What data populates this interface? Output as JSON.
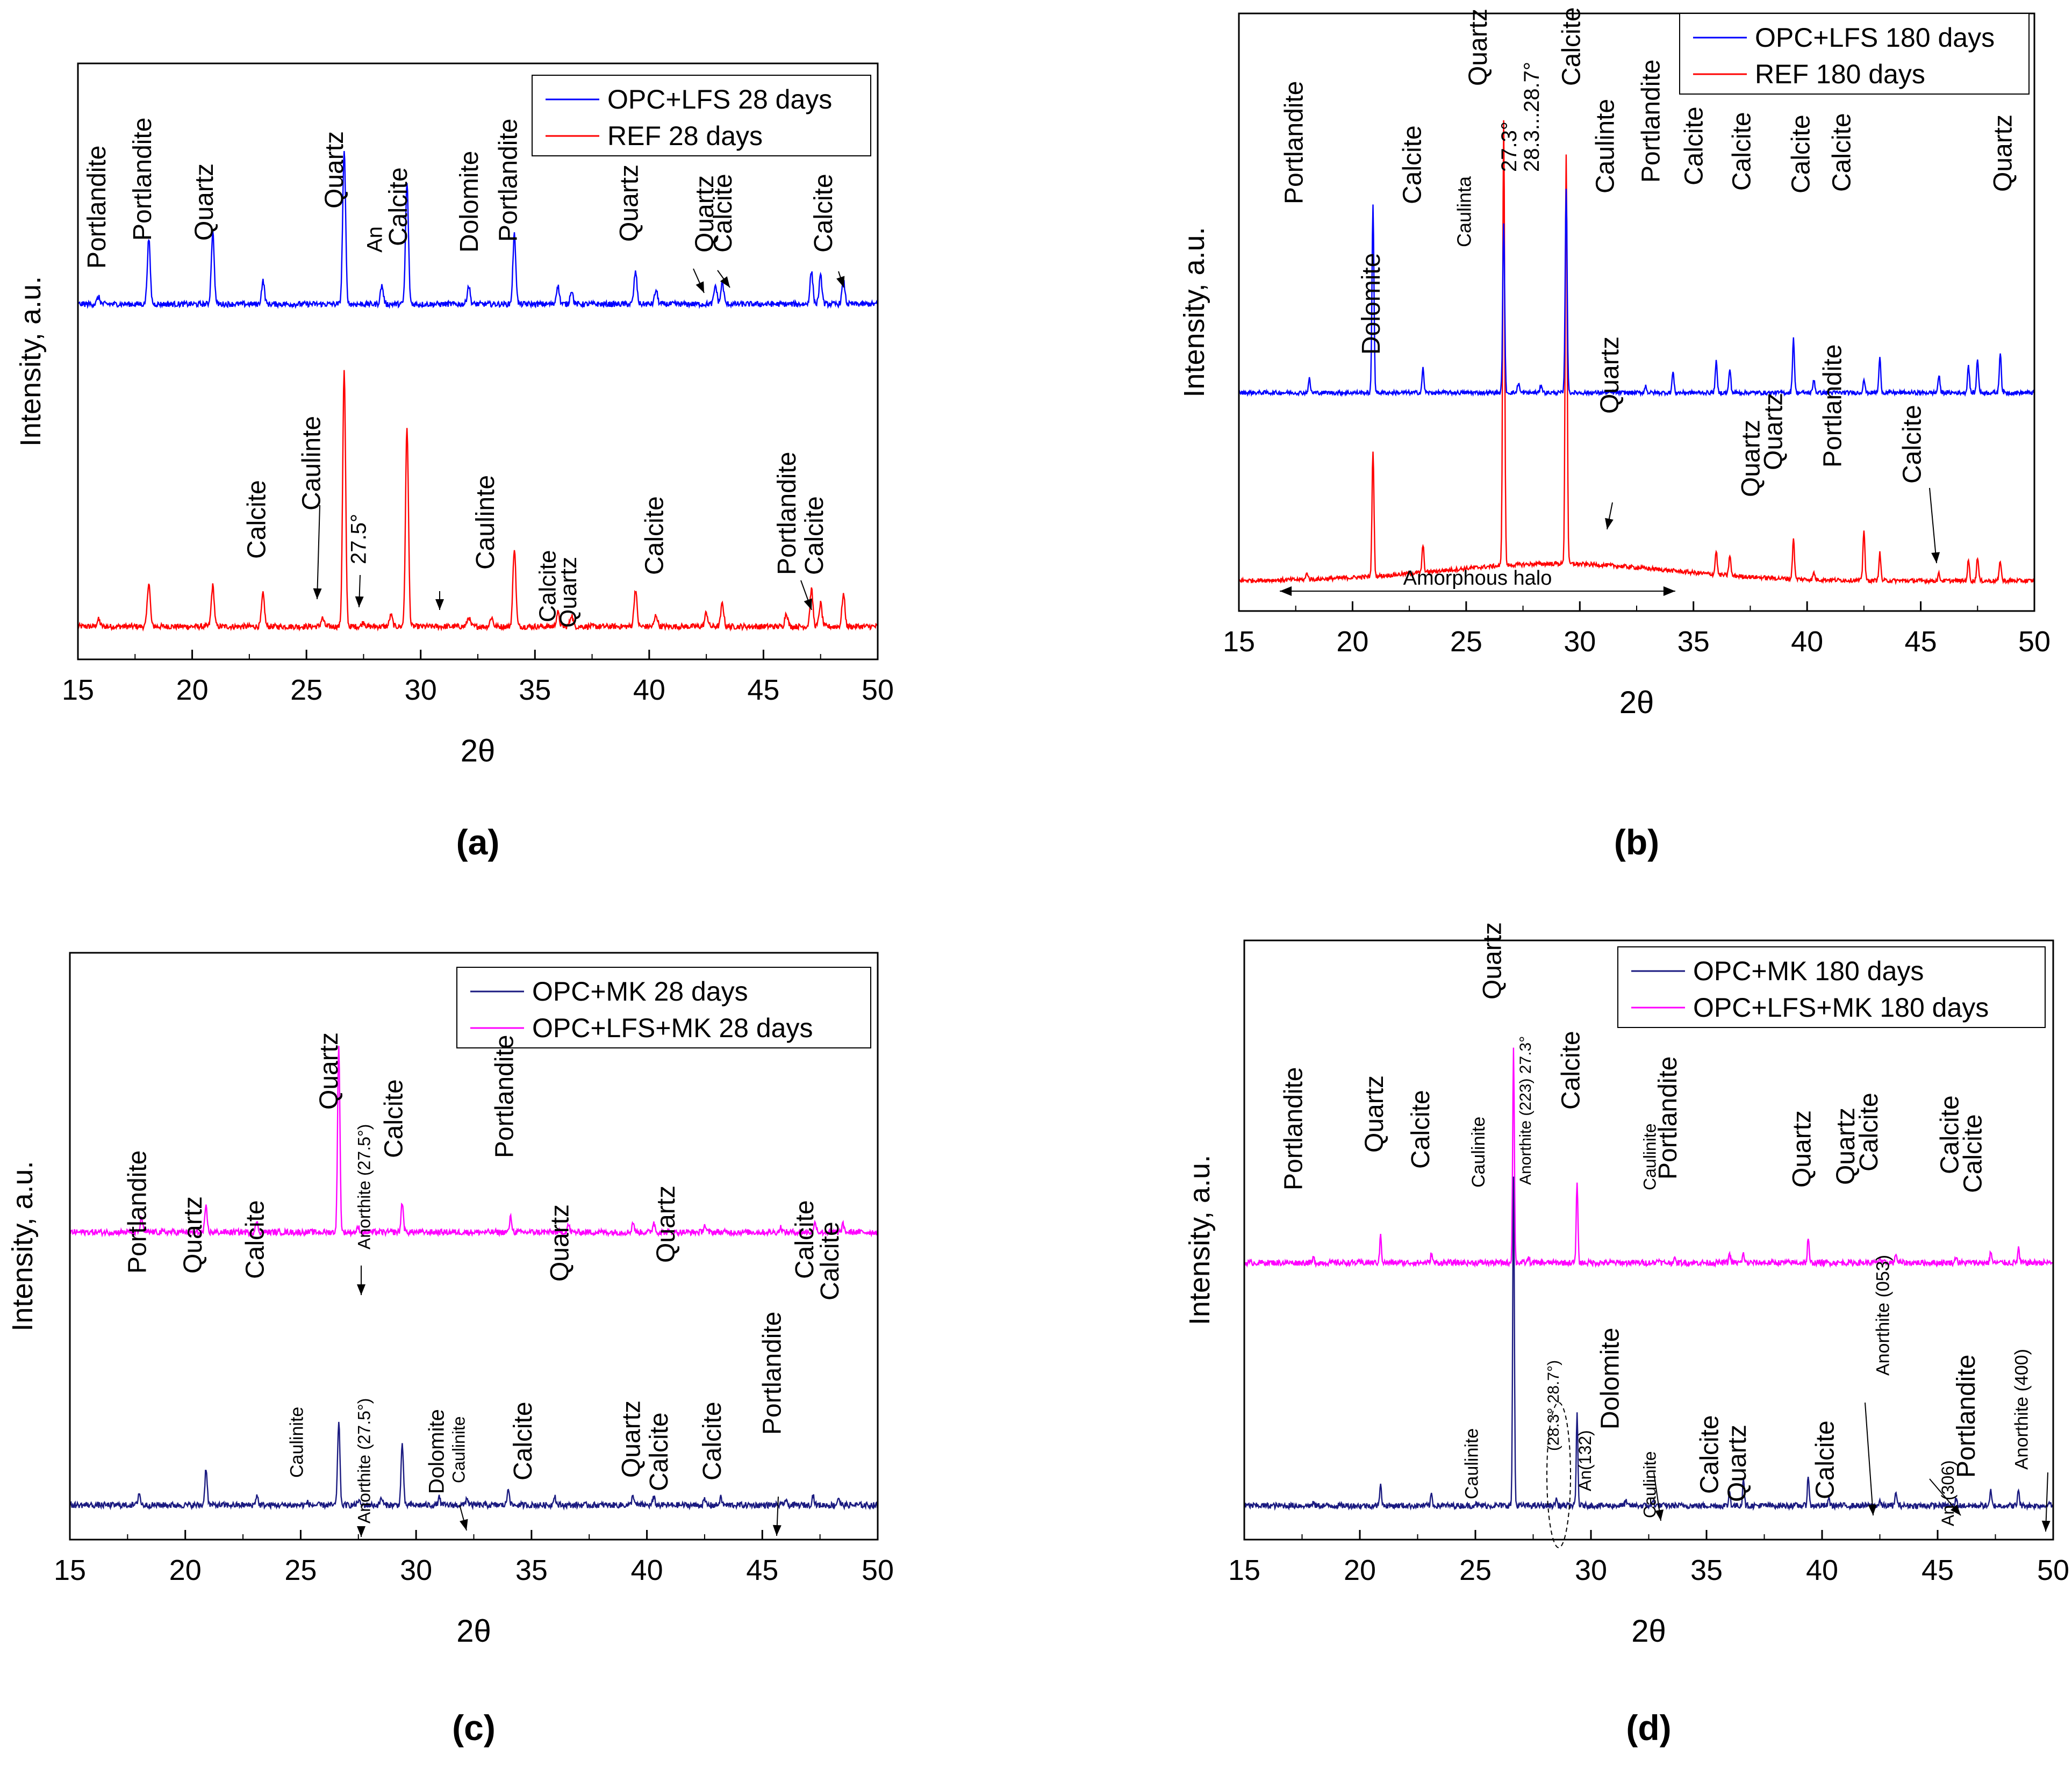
{
  "chart_data": [
    {
      "panel_label": "(a)",
      "type": "line",
      "xlabel": "2θ",
      "ylabel": "Intensity, a.u.",
      "xlim": [
        15,
        50
      ],
      "xticks": [
        15,
        20,
        25,
        30,
        35,
        40,
        45,
        50
      ],
      "legend": "top-right",
      "series": [
        {
          "name": "REF 28 days",
          "color": "#ff0000",
          "baseline": 0.05,
          "offset": 0,
          "peaks": [
            [
              15.9,
              0.015
            ],
            [
              18.1,
              0.095
            ],
            [
              20.9,
              0.088
            ],
            [
              23.1,
              0.07
            ],
            [
              25.7,
              0.018
            ],
            [
              26.65,
              0.55
            ],
            [
              27.5,
              0.01
            ],
            [
              28.7,
              0.025
            ],
            [
              29.4,
              0.43
            ],
            [
              32.1,
              0.02
            ],
            [
              33.1,
              0.02
            ],
            [
              34.1,
              0.17
            ],
            [
              36.0,
              0.03
            ],
            [
              36.6,
              0.025
            ],
            [
              39.4,
              0.08
            ],
            [
              40.3,
              0.025
            ],
            [
              42.5,
              0.03
            ],
            [
              43.2,
              0.05
            ],
            [
              46.0,
              0.03
            ],
            [
              47.1,
              0.08
            ],
            [
              47.5,
              0.05
            ],
            [
              48.5,
              0.07
            ]
          ]
        },
        {
          "name": "OPC+LFS 28 days",
          "color": "#0000ff",
          "baseline": 0.05,
          "offset": 0.695,
          "peaks": [
            [
              15.9,
              0.015
            ],
            [
              18.1,
              0.14
            ],
            [
              20.9,
              0.155
            ],
            [
              23.1,
              0.05
            ],
            [
              26.65,
              0.33
            ],
            [
              28.3,
              0.04
            ],
            [
              29.4,
              0.26
            ],
            [
              32.1,
              0.04
            ],
            [
              34.1,
              0.15
            ],
            [
              36.0,
              0.04
            ],
            [
              36.6,
              0.03
            ],
            [
              39.4,
              0.07
            ],
            [
              40.3,
              0.03
            ],
            [
              42.9,
              0.04
            ],
            [
              43.2,
              0.045
            ],
            [
              47.1,
              0.07
            ],
            [
              47.5,
              0.06
            ],
            [
              48.5,
              0.05
            ]
          ]
        }
      ],
      "annotations": [
        {
          "text": "Portlandite",
          "series": "OPC+LFS 28 days"
        },
        {
          "text": "Portlandite",
          "series": "OPC+LFS 28 days"
        },
        {
          "text": "Quartz",
          "series": "OPC+LFS 28 days"
        },
        {
          "text": "Quartz",
          "series": "OPC+LFS 28 days"
        },
        {
          "text": "An",
          "series": "OPC+LFS 28 days"
        },
        {
          "text": "Calcite",
          "series": "OPC+LFS 28 days"
        },
        {
          "text": "Dolomite",
          "series": "OPC+LFS 28 days"
        },
        {
          "text": "Portlandite",
          "series": "OPC+LFS 28 days"
        },
        {
          "text": "Quartz",
          "series": "OPC+LFS 28 days"
        },
        {
          "text": "Quartz",
          "series": "OPC+LFS 28 days"
        },
        {
          "text": "Calcite",
          "series": "OPC+LFS 28 days"
        },
        {
          "text": "Calcite",
          "series": "OPC+LFS 28 days"
        },
        {
          "text": "Calcite",
          "series": "REF 28 days"
        },
        {
          "text": "Caulinte",
          "series": "REF 28 days"
        },
        {
          "text": "27.5°",
          "series": "REF 28 days"
        },
        {
          "text": "Caulinte",
          "series": "REF 28 days"
        },
        {
          "text": "Calcite",
          "series": "REF 28 days"
        },
        {
          "text": "Quartz",
          "series": "REF 28 days"
        },
        {
          "text": "Calcite",
          "series": "REF 28 days"
        },
        {
          "text": "Portlandite",
          "series": "REF 28 days"
        },
        {
          "text": "Calcite",
          "series": "REF 28 days"
        }
      ]
    },
    {
      "panel_label": "(b)",
      "type": "line",
      "xlabel": "2θ",
      "ylabel": "Intensity, a.u.",
      "xlim": [
        15,
        50
      ],
      "xticks": [
        15,
        20,
        25,
        30,
        35,
        40,
        45,
        50
      ],
      "legend": "top-right",
      "series": [
        {
          "name": "REF 180 days",
          "color": "#ff0000",
          "baseline": 0.06,
          "offset": 0,
          "halo": true,
          "peaks": [
            [
              18.0,
              0.02
            ],
            [
              20.9,
              0.37
            ],
            [
              23.1,
              0.08
            ],
            [
              26.65,
              1.3
            ],
            [
              29.4,
              1.2
            ],
            [
              36.0,
              0.07
            ],
            [
              36.6,
              0.06
            ],
            [
              39.4,
              0.12
            ],
            [
              40.3,
              0.02
            ],
            [
              42.5,
              0.15
            ],
            [
              43.2,
              0.08
            ],
            [
              45.8,
              0.02
            ],
            [
              47.1,
              0.06
            ],
            [
              47.5,
              0.07
            ],
            [
              48.5,
              0.06
            ]
          ]
        },
        {
          "name": "OPC+LFS 180 days",
          "color": "#0000ff",
          "baseline": 0.06,
          "offset": 0.55,
          "peaks": [
            [
              18.1,
              0.04
            ],
            [
              20.9,
              0.55
            ],
            [
              23.1,
              0.07
            ],
            [
              26.65,
              0.5
            ],
            [
              27.3,
              0.03
            ],
            [
              28.3,
              0.025
            ],
            [
              29.4,
              0.6
            ],
            [
              32.9,
              0.02
            ],
            [
              34.1,
              0.06
            ],
            [
              36.0,
              0.09
            ],
            [
              36.6,
              0.07
            ],
            [
              39.4,
              0.16
            ],
            [
              40.3,
              0.04
            ],
            [
              42.5,
              0.04
            ],
            [
              43.2,
              0.1
            ],
            [
              45.8,
              0.05
            ],
            [
              47.1,
              0.08
            ],
            [
              47.5,
              0.1
            ],
            [
              48.5,
              0.12
            ]
          ]
        }
      ],
      "halo_label": "Amorphous halo",
      "annotations": [
        {
          "text": "Portlandite"
        },
        {
          "text": "Calcite"
        },
        {
          "text": "Caulinta"
        },
        {
          "text": "Quartz"
        },
        {
          "text": "27.3°"
        },
        {
          "text": "28.3...28.7°"
        },
        {
          "text": "Calcite"
        },
        {
          "text": "Caulinte"
        },
        {
          "text": "Portlandite"
        },
        {
          "text": "Calcite"
        },
        {
          "text": "Calcite"
        },
        {
          "text": "Calcite"
        },
        {
          "text": "Calcite"
        },
        {
          "text": "Quartz"
        },
        {
          "text": "Dolomite"
        },
        {
          "text": "Quartz"
        },
        {
          "text": "Quartz"
        },
        {
          "text": "Quartz"
        },
        {
          "text": "Portlandite"
        },
        {
          "text": "Calcite"
        }
      ]
    },
    {
      "panel_label": "(c)",
      "type": "line",
      "xlabel": "2θ",
      "ylabel": "Intensity, a.u.",
      "xlim": [
        15,
        50
      ],
      "xticks": [
        15,
        20,
        25,
        30,
        35,
        40,
        45,
        50
      ],
      "legend": "top-right",
      "series": [
        {
          "name": "OPC+LFS+MK 28 days",
          "color": "#ff00ff",
          "baseline": 0.05,
          "offset": 0.55,
          "peaks": [
            [
              18.1,
              0.03
            ],
            [
              20.9,
              0.05
            ],
            [
              23.1,
              0.02
            ],
            [
              26.65,
              0.38
            ],
            [
              27.5,
              0.01
            ],
            [
              29.4,
              0.06
            ],
            [
              34.1,
              0.03
            ],
            [
              36.6,
              0.015
            ],
            [
              39.4,
              0.02
            ],
            [
              40.3,
              0.02
            ],
            [
              42.5,
              0.015
            ],
            [
              45.8,
              0.01
            ],
            [
              47.3,
              0.02
            ],
            [
              48.5,
              0.015
            ]
          ]
        },
        {
          "name": "OPC+MK 28 days",
          "color": "#1a1a80",
          "baseline": 0.05,
          "offset": 0,
          "peaks": [
            [
              18.0,
              0.025
            ],
            [
              20.9,
              0.075
            ],
            [
              23.1,
              0.02
            ],
            [
              25.3,
              0.005
            ],
            [
              26.65,
              0.17
            ],
            [
              27.5,
              0.01
            ],
            [
              28.5,
              0.015
            ],
            [
              29.4,
              0.125
            ],
            [
              31.0,
              0.015
            ],
            [
              32.2,
              0.015
            ],
            [
              34.0,
              0.035
            ],
            [
              36.0,
              0.02
            ],
            [
              39.4,
              0.02
            ],
            [
              40.3,
              0.015
            ],
            [
              42.5,
              0.01
            ],
            [
              43.2,
              0.015
            ],
            [
              46.0,
              0.01
            ],
            [
              47.2,
              0.02
            ],
            [
              48.3,
              0.015
            ]
          ]
        }
      ],
      "annotations": [
        {
          "text": "Portlandite"
        },
        {
          "text": "Quartz"
        },
        {
          "text": "Calcite"
        },
        {
          "text": "Quartz"
        },
        {
          "text": "Anorthite (27.5°)"
        },
        {
          "text": "Calcite"
        },
        {
          "text": "Portlandite"
        },
        {
          "text": "Quartz"
        },
        {
          "text": "Quartz"
        },
        {
          "text": "Calcite"
        },
        {
          "text": "Calcite"
        },
        {
          "text": "Caulinite"
        },
        {
          "text": "Anorthite (27.5°)"
        },
        {
          "text": "Dolomite"
        },
        {
          "text": "Caulinite"
        },
        {
          "text": "Calcite"
        },
        {
          "text": "Quartz"
        },
        {
          "text": "Calcite"
        },
        {
          "text": "Calcite"
        },
        {
          "text": "Portlandite"
        }
      ]
    },
    {
      "panel_label": "(d)",
      "type": "line",
      "xlabel": "2θ",
      "ylabel": "Intensity, a.u.",
      "xlim": [
        15,
        50
      ],
      "xticks": [
        15,
        20,
        25,
        30,
        35,
        40,
        45,
        50
      ],
      "legend": "top-right",
      "series": [
        {
          "name": "OPC+LFS+MK 180 days",
          "color": "#ff00ff",
          "baseline": 0.05,
          "offset": 0.5,
          "peaks": [
            [
              18.0,
              0.01
            ],
            [
              20.9,
              0.06
            ],
            [
              23.1,
              0.02
            ],
            [
              26.65,
              0.44
            ],
            [
              27.3,
              0.01
            ],
            [
              29.4,
              0.17
            ],
            [
              32.9,
              0.01
            ],
            [
              33.6,
              0.01
            ],
            [
              36.0,
              0.02
            ],
            [
              36.6,
              0.02
            ],
            [
              39.4,
              0.05
            ],
            [
              42.5,
              0.01
            ],
            [
              43.2,
              0.02
            ],
            [
              45.8,
              0.015
            ],
            [
              47.3,
              0.025
            ],
            [
              48.5,
              0.03
            ]
          ]
        },
        {
          "name": "OPC+MK 180 days",
          "color": "#1a1a80",
          "baseline": 0.05,
          "offset": 0,
          "peaks": [
            [
              18.0,
              0.005
            ],
            [
              20.9,
              0.05
            ],
            [
              23.1,
              0.025
            ],
            [
              25.0,
              0.005
            ],
            [
              26.65,
              0.68
            ],
            [
              28.5,
              0.015
            ],
            [
              29.4,
              0.19
            ],
            [
              31.5,
              0.01
            ],
            [
              32.7,
              0.01
            ],
            [
              36.0,
              0.03
            ],
            [
              36.6,
              0.06
            ],
            [
              39.4,
              0.065
            ],
            [
              40.3,
              0.015
            ],
            [
              42.5,
              0.01
            ],
            [
              43.2,
              0.03
            ],
            [
              45.8,
              0.015
            ],
            [
              47.3,
              0.03
            ],
            [
              48.5,
              0.035
            ],
            [
              49.8,
              0.01
            ]
          ]
        }
      ],
      "annotations": [
        {
          "text": "Portlandite"
        },
        {
          "text": "Quartz"
        },
        {
          "text": "Calcite"
        },
        {
          "text": "Caulinite"
        },
        {
          "text": "Quartz"
        },
        {
          "text": "Anorthite (223) 27.3°"
        },
        {
          "text": "Calcite"
        },
        {
          "text": "Caulinite"
        },
        {
          "text": "Portlandite"
        },
        {
          "text": "Quartz"
        },
        {
          "text": "Quartz"
        },
        {
          "text": "Calcite"
        },
        {
          "text": "Calcite"
        },
        {
          "text": "Calcite"
        },
        {
          "text": "Caulinite"
        },
        {
          "text": "(28.3° 28.7°)"
        },
        {
          "text": "An(132)"
        },
        {
          "text": "Dolomite"
        },
        {
          "text": "Caulinite"
        },
        {
          "text": "Calcite"
        },
        {
          "text": "Quartz"
        },
        {
          "text": "Calcite"
        },
        {
          "text": "Anorthite (053)"
        },
        {
          "text": "An (306)"
        },
        {
          "text": "Portlandite"
        },
        {
          "text": "Anorthite (400)"
        }
      ]
    }
  ]
}
